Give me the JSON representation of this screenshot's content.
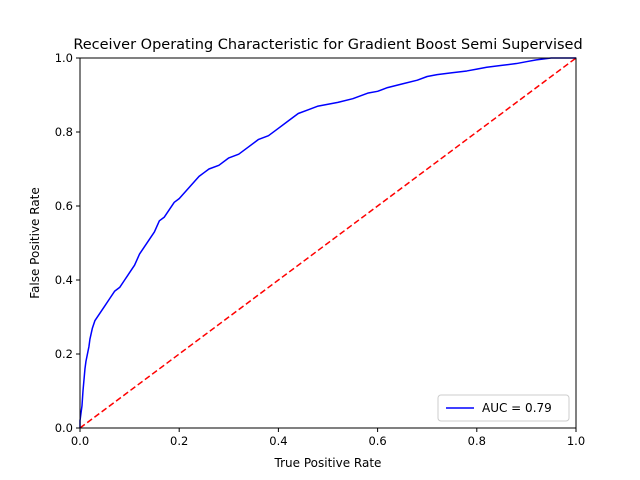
{
  "chart_data": {
    "type": "line",
    "title": "Receiver Operating Characteristic for Gradient Boost Semi Supervised",
    "xlabel": "True Positive Rate",
    "ylabel": "False Positive Rate",
    "xlim": [
      0,
      1
    ],
    "ylim": [
      0,
      1
    ],
    "x_ticks": [
      "0.0",
      "0.2",
      "0.4",
      "0.6",
      "0.8",
      "1.0"
    ],
    "y_ticks": [
      "0.0",
      "0.2",
      "0.4",
      "0.6",
      "0.8",
      "1.0"
    ],
    "grid": false,
    "legend_position": "lower-right",
    "series": [
      {
        "name": "AUC = 0.79",
        "color": "#0000ff",
        "style": "solid",
        "x": [
          0.0,
          0.0,
          0.002,
          0.004,
          0.006,
          0.008,
          0.01,
          0.012,
          0.015,
          0.018,
          0.02,
          0.025,
          0.03,
          0.04,
          0.05,
          0.06,
          0.07,
          0.08,
          0.09,
          0.1,
          0.11,
          0.12,
          0.13,
          0.14,
          0.15,
          0.16,
          0.17,
          0.18,
          0.19,
          0.2,
          0.22,
          0.24,
          0.25,
          0.26,
          0.28,
          0.3,
          0.32,
          0.34,
          0.36,
          0.38,
          0.4,
          0.42,
          0.44,
          0.46,
          0.48,
          0.5,
          0.52,
          0.55,
          0.58,
          0.6,
          0.62,
          0.65,
          0.68,
          0.7,
          0.72,
          0.75,
          0.78,
          0.8,
          0.82,
          0.85,
          0.88,
          0.9,
          0.92,
          0.95,
          1.0
        ],
        "y": [
          0.0,
          0.02,
          0.04,
          0.06,
          0.1,
          0.13,
          0.16,
          0.18,
          0.2,
          0.22,
          0.24,
          0.27,
          0.29,
          0.31,
          0.33,
          0.35,
          0.37,
          0.38,
          0.4,
          0.42,
          0.44,
          0.47,
          0.49,
          0.51,
          0.53,
          0.56,
          0.57,
          0.59,
          0.61,
          0.62,
          0.65,
          0.68,
          0.69,
          0.7,
          0.71,
          0.73,
          0.74,
          0.76,
          0.78,
          0.79,
          0.81,
          0.83,
          0.85,
          0.86,
          0.87,
          0.875,
          0.88,
          0.89,
          0.905,
          0.91,
          0.92,
          0.93,
          0.94,
          0.95,
          0.955,
          0.96,
          0.965,
          0.97,
          0.975,
          0.98,
          0.985,
          0.99,
          0.995,
          1.0,
          1.0
        ]
      },
      {
        "name": "",
        "color": "#ff0000",
        "style": "dashed",
        "x": [
          0,
          1
        ],
        "y": [
          0,
          1
        ]
      }
    ]
  }
}
